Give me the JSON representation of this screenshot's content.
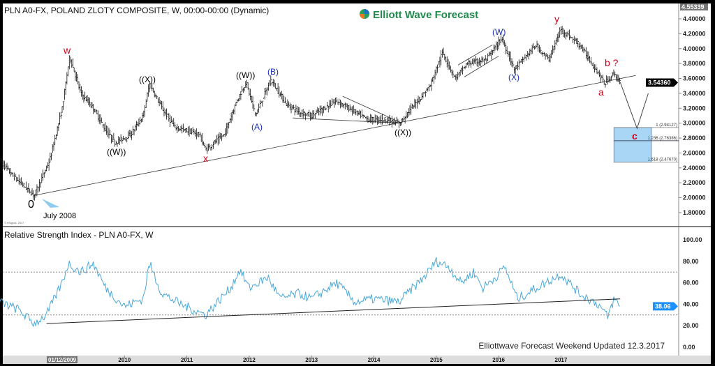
{
  "header": {
    "title": "PLN A0-FX, POLAND ZLOTY COMPOSITE, W, 00:00-00:00 (Dynamic)",
    "logo_text": "Elliott Wave Forecast",
    "copyright": "© eSignal, 2017"
  },
  "rsi_title": "Relative Strength Index - PLN A0-FX, W",
  "footer_note": "Elliottwave Forecast Weekend Updated 12.3.2017",
  "colors": {
    "bars": "#111111",
    "rsi_line": "#4aa8d8",
    "fib_box": "#a9d6f5",
    "wave_red": "#d0021b",
    "wave_blue": "#1a2fb0",
    "last_price_bg": "#000000",
    "rsi_marker_bg": "#1e90ff"
  },
  "chart_data": [
    {
      "type": "ohlc",
      "title": "PLN A0-FX, POLAND ZLOTY COMPOSITE, W, 00:00-00:00 (Dynamic)",
      "ylim": [
        1.65,
        4.55339
      ],
      "y_ticks": [
        "4.40000",
        "4.20000",
        "4.00000",
        "3.80000",
        "3.60000",
        "3.40000",
        "3.20000",
        "3.00000",
        "2.80000",
        "2.60000",
        "2.40000",
        "2.20000",
        "2.00000",
        "1.80000"
      ],
      "top_label": "4.55339",
      "last_price": "3.54360",
      "x_ticks": [
        "01/12/2009",
        "2010",
        "2011",
        "2012",
        "2013",
        "2014",
        "2015",
        "2016",
        "2017"
      ],
      "price_path": [
        [
          2008.0,
          2.5
        ],
        [
          2008.2,
          2.3
        ],
        [
          2008.4,
          2.15
        ],
        [
          2008.55,
          2.03
        ],
        [
          2008.8,
          2.5
        ],
        [
          2009.0,
          3.2
        ],
        [
          2009.12,
          3.9
        ],
        [
          2009.3,
          3.4
        ],
        [
          2009.5,
          3.2
        ],
        [
          2009.7,
          2.9
        ],
        [
          2009.85,
          2.74
        ],
        [
          2010.1,
          2.85
        ],
        [
          2010.3,
          3.1
        ],
        [
          2010.4,
          3.53
        ],
        [
          2010.6,
          3.2
        ],
        [
          2010.8,
          2.95
        ],
        [
          2011.0,
          2.9
        ],
        [
          2011.2,
          2.85
        ],
        [
          2011.3,
          2.64
        ],
        [
          2011.6,
          2.85
        ],
        [
          2011.8,
          3.3
        ],
        [
          2011.95,
          3.55
        ],
        [
          2012.1,
          3.11
        ],
        [
          2012.35,
          3.58
        ],
        [
          2012.6,
          3.25
        ],
        [
          2012.8,
          3.15
        ],
        [
          2013.0,
          3.1
        ],
        [
          2013.4,
          3.3
        ],
        [
          2013.6,
          3.2
        ],
        [
          2013.9,
          3.05
        ],
        [
          2014.2,
          3.05
        ],
        [
          2014.4,
          2.99
        ],
        [
          2014.6,
          3.2
        ],
        [
          2014.9,
          3.5
        ],
        [
          2015.1,
          3.95
        ],
        [
          2015.3,
          3.6
        ],
        [
          2015.5,
          3.8
        ],
        [
          2015.8,
          3.85
        ],
        [
          2016.05,
          4.14
        ],
        [
          2016.25,
          3.72
        ],
        [
          2016.6,
          4.05
        ],
        [
          2016.8,
          3.85
        ],
        [
          2017.0,
          4.26
        ],
        [
          2017.3,
          4.05
        ],
        [
          2017.5,
          3.8
        ],
        [
          2017.7,
          3.53
        ],
        [
          2017.85,
          3.67
        ],
        [
          2017.95,
          3.5436
        ]
      ],
      "trendlines": [
        [
          [
            2008.55,
            2.03
          ],
          [
            2018.2,
            3.64
          ]
        ],
        [
          [
            2013.5,
            3.36
          ],
          [
            2014.45,
            3.0
          ]
        ],
        [
          [
            2012.7,
            3.07
          ],
          [
            2014.45,
            3.0
          ]
        ],
        [
          [
            2015.35,
            3.78
          ],
          [
            2015.9,
            4.05
          ]
        ],
        [
          [
            2015.45,
            3.62
          ],
          [
            2016.0,
            3.9
          ]
        ]
      ],
      "projection": [
        [
          2017.95,
          3.55
        ],
        [
          2018.22,
          2.93
        ],
        [
          2018.4,
          3.4
        ]
      ],
      "fib_box": {
        "from": 2017.85,
        "to": 2018.45,
        "top": 2.94127,
        "bottom": 2.4767
      },
      "fib_levels": [
        {
          "label": "1 (2.94127)",
          "value": 2.94127
        },
        {
          "label": "1.236 (2.76386)",
          "value": 2.76386
        },
        {
          "label": "1.618 (2.47670)",
          "value": 2.4767
        }
      ],
      "annotations": {
        "zero": "0",
        "july": "July 2008",
        "w": "w",
        "x": "x",
        "y": "y",
        "a": "a",
        "b": "b ?",
        "c": "c",
        "A": "(A)",
        "B": "(B)",
        "W": "(W)",
        "X": "(X)",
        "WW1": "((W))",
        "XX1": "((X))",
        "WW2": "((W))",
        "XX2": "((X))"
      }
    },
    {
      "type": "line",
      "title": "Relative Strength Index - PLN A0-FX, W",
      "ylim": [
        0,
        100
      ],
      "y_ticks": [
        "100.00",
        "80.00",
        "60.00",
        "40.00",
        "20.00",
        "0.00"
      ],
      "levels": [
        70,
        30
      ],
      "last_value": "38.06",
      "rsi_path": [
        [
          2008.0,
          42
        ],
        [
          2008.3,
          35
        ],
        [
          2008.55,
          22
        ],
        [
          2008.75,
          30
        ],
        [
          2009.0,
          60
        ],
        [
          2009.1,
          78
        ],
        [
          2009.3,
          70
        ],
        [
          2009.5,
          78
        ],
        [
          2009.7,
          55
        ],
        [
          2010.0,
          38
        ],
        [
          2010.3,
          45
        ],
        [
          2010.4,
          78
        ],
        [
          2010.6,
          50
        ],
        [
          2010.9,
          40
        ],
        [
          2011.3,
          30
        ],
        [
          2011.7,
          55
        ],
        [
          2011.85,
          72
        ],
        [
          2012.0,
          55
        ],
        [
          2012.3,
          65
        ],
        [
          2012.5,
          45
        ],
        [
          2012.8,
          50
        ],
        [
          2013.0,
          45
        ],
        [
          2013.4,
          60
        ],
        [
          2013.7,
          42
        ],
        [
          2014.0,
          45
        ],
        [
          2014.4,
          42
        ],
        [
          2014.8,
          65
        ],
        [
          2015.0,
          80
        ],
        [
          2015.2,
          75
        ],
        [
          2015.4,
          60
        ],
        [
          2015.6,
          70
        ],
        [
          2015.75,
          55
        ],
        [
          2016.0,
          68
        ],
        [
          2016.1,
          75
        ],
        [
          2016.3,
          45
        ],
        [
          2016.6,
          55
        ],
        [
          2017.0,
          68
        ],
        [
          2017.3,
          50
        ],
        [
          2017.6,
          40
        ],
        [
          2017.75,
          28
        ],
        [
          2017.85,
          45
        ],
        [
          2017.95,
          38.06
        ]
      ],
      "trendline": [
        [
          2008.75,
          22
        ],
        [
          2017.95,
          45
        ]
      ]
    }
  ]
}
